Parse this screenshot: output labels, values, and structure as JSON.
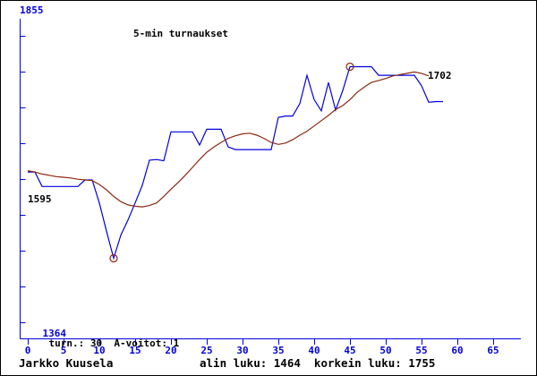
{
  "title": "5-min turnaukset",
  "colors": {
    "axis": "#0000dd",
    "rating_line": "#0000dd",
    "average_line": "#8b2810",
    "marker_stroke": "#8b2810",
    "text": "#000000",
    "background": "#ffffff"
  },
  "y_axis": {
    "max_label": "1855",
    "min_label": "1364"
  },
  "status_line": {
    "min_value": "1364",
    "stats": "turn.: 30  A-voitot: 1"
  },
  "annotations": {
    "start_rating": "1595",
    "end_rating": "1702"
  },
  "footer": {
    "player": "Jarkko Kuusela",
    "summary": "alin luku: 1464  korkein luku: 1755"
  },
  "chart_data": {
    "type": "line",
    "title": "5-min turnaukset",
    "x_start": 0,
    "x_step": 1,
    "x_tick_labels": [
      "0",
      "5",
      "10",
      "15",
      "20",
      "25",
      "30",
      "35",
      "40",
      "45",
      "50",
      "55",
      "60",
      "65"
    ],
    "x_tick_values": [
      0,
      5,
      10,
      15,
      20,
      25,
      30,
      35,
      40,
      45,
      50,
      55,
      60,
      65
    ],
    "y_range": [
      1364,
      1855
    ],
    "grid": false,
    "legend": false,
    "series": [
      {
        "name": "rating",
        "color": "#0000dd",
        "values": [
          1595,
          1595,
          1573,
          1573,
          1573,
          1573,
          1573,
          1573,
          1583,
          1583,
          1548,
          1505,
          1464,
          1499,
          1522,
          1548,
          1575,
          1613,
          1614,
          1612,
          1656,
          1656,
          1656,
          1656,
          1636,
          1660,
          1660,
          1660,
          1633,
          1629,
          1629,
          1629,
          1629,
          1629,
          1629,
          1678,
          1680,
          1680,
          1699,
          1742,
          1705,
          1688,
          1731,
          1689,
          1719,
          1755,
          1755,
          1755,
          1755,
          1742,
          1742,
          1742,
          1742,
          1742,
          1742,
          1726,
          1701,
          1702,
          1702
        ]
      },
      {
        "name": "moving-average",
        "color": "#8b2810",
        "values": [
          1597,
          1595,
          1592,
          1590,
          1588,
          1587,
          1586,
          1584,
          1583,
          1582,
          1576,
          1568,
          1558,
          1550,
          1545,
          1543,
          1542,
          1544,
          1548,
          1558,
          1569,
          1579,
          1590,
          1602,
          1614,
          1625,
          1633,
          1640,
          1646,
          1650,
          1653,
          1654,
          1651,
          1646,
          1640,
          1637,
          1639,
          1644,
          1651,
          1657,
          1665,
          1673,
          1681,
          1690,
          1696,
          1705,
          1716,
          1724,
          1731,
          1734,
          1737,
          1741,
          1743,
          1745,
          1747,
          1745,
          1741
        ]
      }
    ],
    "markers": [
      {
        "name": "lowest",
        "x": 12,
        "value": 1464
      },
      {
        "name": "highest",
        "x": 45,
        "value": 1755
      }
    ],
    "min_label": "alin luku: 1464",
    "max_label": "korkein luku: 1755"
  }
}
